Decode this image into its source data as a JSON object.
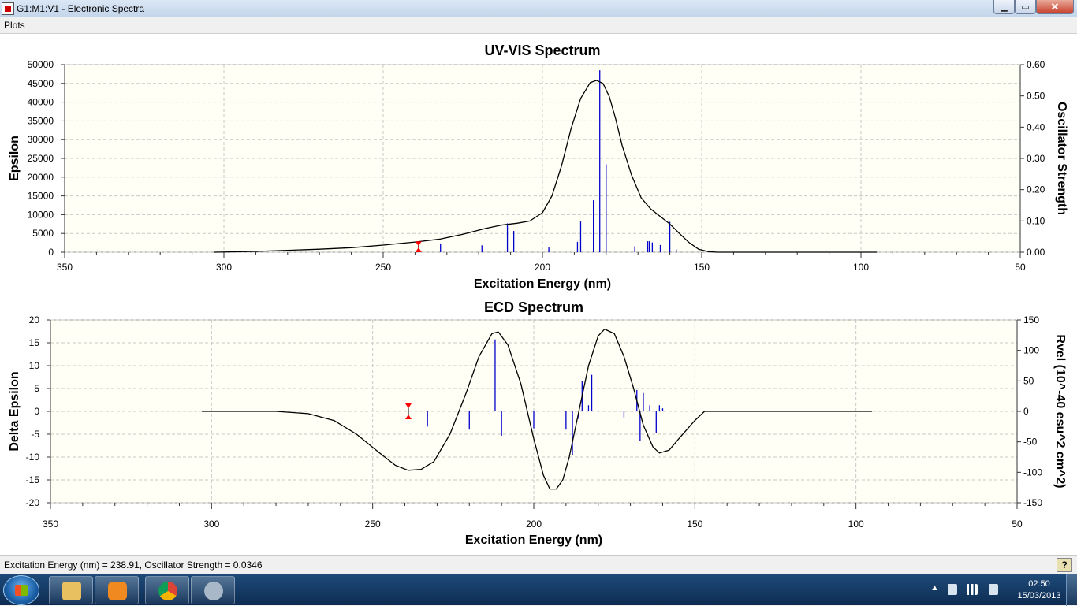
{
  "window": {
    "title": "G1:M1:V1 - Electronic Spectra",
    "minimize_label": "0",
    "maximize_label": "1",
    "close_label": "✕"
  },
  "menu": {
    "plots_label": "Plots"
  },
  "status": {
    "text": "Excitation Energy (nm) = 238.91, Oscillator Strength = 0.0346",
    "help_label": "?"
  },
  "taskbar": {
    "apps": [
      "explorer-icon",
      "media-player-icon",
      "chrome-icon",
      "gaussview-icon"
    ],
    "clock_time": "02:50",
    "clock_date": "15/03/2013"
  },
  "chart_data": [
    {
      "type": "line",
      "title": "UV-VIS Spectrum",
      "xlabel": "Excitation Energy (nm)",
      "ylabel": "Epsilon",
      "y2label": "Oscillator Strength",
      "xlim": [
        350,
        50
      ],
      "ylim": [
        0,
        50000
      ],
      "y2lim": [
        0,
        0.6
      ],
      "xticks": [
        350,
        300,
        250,
        200,
        150,
        100,
        50
      ],
      "yticks": [
        0,
        5000,
        10000,
        15000,
        20000,
        25000,
        30000,
        35000,
        40000,
        45000,
        50000
      ],
      "y2ticks": [
        "0.00",
        "0.10",
        "0.20",
        "0.30",
        "0.40",
        "0.50",
        "0.60"
      ],
      "grid": true,
      "colors": {
        "curve": "#000000",
        "sticks": "#0000cc",
        "marker": "#ff0000",
        "background": "#fffff5"
      },
      "curve": {
        "x": [
          303,
          290,
          280,
          270,
          260,
          250,
          240,
          232,
          225,
          218,
          213,
          208,
          204,
          200,
          197,
          194,
          191,
          188,
          185,
          183,
          181,
          179,
          177,
          175,
          172,
          169,
          166,
          163,
          160,
          157,
          154,
          151,
          148,
          145,
          135,
          120,
          110,
          95
        ],
        "y": [
          0,
          200,
          500,
          800,
          1200,
          1900,
          2700,
          3500,
          4800,
          6300,
          7200,
          7700,
          8300,
          10500,
          15000,
          23000,
          33000,
          41000,
          45200,
          45800,
          45000,
          41500,
          35500,
          28500,
          20500,
          14500,
          11500,
          9500,
          7500,
          5000,
          2600,
          800,
          150,
          0,
          0,
          0,
          0,
          0
        ]
      },
      "sticks": {
        "x": [
          232,
          219,
          211,
          209,
          198,
          189,
          188,
          184,
          182,
          180,
          171,
          167,
          166.5,
          165.5,
          163,
          160,
          158
        ],
        "y": [
          0.028,
          0.022,
          0.092,
          0.068,
          0.016,
          0.033,
          0.098,
          0.166,
          0.582,
          0.281,
          0.019,
          0.035,
          0.035,
          0.031,
          0.023,
          0.097,
          0.009
        ]
      },
      "marker": {
        "x": 238.91,
        "y": 0.0346
      }
    },
    {
      "type": "line",
      "title": "ECD Spectrum",
      "xlabel": "Excitation Energy (nm)",
      "ylabel": "Delta Epsilon",
      "y2label": "Rvel (10^-40 esu^2 cm^2)",
      "xlim": [
        350,
        50
      ],
      "ylim": [
        -20,
        20
      ],
      "y2lim": [
        -150,
        150
      ],
      "xticks": [
        350,
        300,
        250,
        200,
        150,
        100,
        50
      ],
      "yticks": [
        -20,
        -15,
        -10,
        -5,
        0,
        5,
        10,
        15,
        20
      ],
      "y2ticks": [
        -150,
        -100,
        -50,
        0,
        50,
        100,
        150
      ],
      "grid": true,
      "colors": {
        "curve": "#000000",
        "sticks": "#0000cc",
        "marker": "#ff0000",
        "background": "#fffff5"
      },
      "curve": {
        "x": [
          303,
          280,
          270,
          262,
          255,
          248,
          243,
          239,
          235,
          231,
          226,
          221,
          217,
          213,
          211,
          208,
          204,
          200,
          197,
          195,
          193,
          191,
          189,
          186,
          183,
          180,
          178,
          175,
          172,
          169,
          166,
          163,
          161,
          158,
          155,
          150,
          147,
          140,
          120,
          95
        ],
        "y": [
          0,
          0,
          -0.5,
          -2,
          -5,
          -9,
          -11.8,
          -12.9,
          -12.7,
          -11,
          -5,
          4,
          12,
          17,
          17.4,
          14.5,
          6,
          -6,
          -14,
          -17,
          -17,
          -15,
          -10,
          0,
          10,
          16.5,
          18,
          17,
          12,
          5,
          -3,
          -7.8,
          -9.1,
          -8.5,
          -6,
          -2,
          0,
          0,
          0,
          0
        ]
      },
      "sticks": {
        "x": [
          233,
          220,
          212,
          210,
          200,
          190,
          188,
          186,
          185,
          183,
          182,
          172,
          168,
          167,
          166,
          164,
          162,
          161,
          160
        ],
        "y": [
          -25,
          -30,
          118,
          -40,
          -28,
          -30,
          -72,
          -13,
          50,
          10,
          60,
          -10,
          35,
          -48,
          30,
          10,
          -35,
          10,
          5
        ]
      },
      "marker": {
        "x": 238.91,
        "y": 0
      }
    }
  ]
}
